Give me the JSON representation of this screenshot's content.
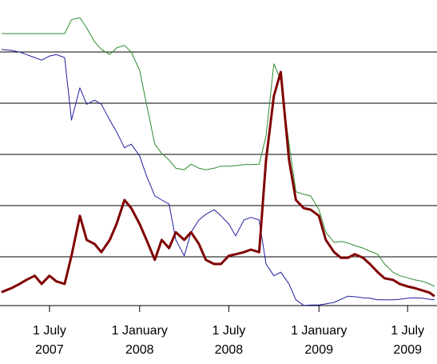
{
  "chart_data": {
    "type": "line",
    "x": [
      "2007-03-25",
      "2007-04-15",
      "2007-05-01",
      "2007-05-15",
      "2007-06-01",
      "2007-06-15",
      "2007-07-01",
      "2007-07-15",
      "2007-08-01",
      "2007-08-15",
      "2007-09-01",
      "2007-09-15",
      "2007-10-01",
      "2007-10-15",
      "2007-11-01",
      "2007-11-15",
      "2007-12-01",
      "2007-12-15",
      "2008-01-01",
      "2008-01-15",
      "2008-02-01",
      "2008-02-15",
      "2008-03-01",
      "2008-03-15",
      "2008-04-01",
      "2008-04-15",
      "2008-05-01",
      "2008-05-15",
      "2008-06-01",
      "2008-06-15",
      "2008-07-01",
      "2008-07-15",
      "2008-08-01",
      "2008-08-15",
      "2008-09-01",
      "2008-09-15",
      "2008-10-01",
      "2008-10-15",
      "2008-11-01",
      "2008-11-15",
      "2008-12-01",
      "2008-12-15",
      "2009-01-01",
      "2009-01-15",
      "2009-02-01",
      "2009-02-15",
      "2009-03-01",
      "2009-03-15",
      "2009-04-01",
      "2009-04-15",
      "2009-05-01",
      "2009-05-15",
      "2009-06-01",
      "2009-06-15",
      "2009-07-01",
      "2009-07-15",
      "2009-08-01",
      "2009-08-15",
      "2009-08-25"
    ],
    "series": [
      {
        "color": "#2e8b2e",
        "width": 1,
        "values": [
          5.36,
          5.36,
          5.36,
          5.36,
          5.36,
          5.36,
          5.36,
          5.36,
          5.36,
          5.63,
          5.67,
          5.47,
          5.2,
          5.05,
          4.95,
          5.08,
          5.13,
          5.0,
          4.64,
          3.98,
          3.2,
          3.02,
          2.89,
          2.73,
          2.7,
          2.81,
          2.73,
          2.7,
          2.73,
          2.77,
          2.77,
          2.78,
          2.8,
          2.8,
          2.81,
          3.36,
          4.77,
          4.45,
          3.2,
          2.27,
          2.22,
          2.19,
          1.92,
          1.48,
          1.28,
          1.3,
          1.27,
          1.22,
          1.17,
          1.11,
          1.05,
          0.86,
          0.7,
          0.63,
          0.59,
          0.55,
          0.52,
          0.47,
          0.42
        ]
      },
      {
        "color": "#1f1fa0",
        "width": 1,
        "values": [
          5.05,
          5.03,
          5.0,
          4.95,
          4.89,
          4.84,
          4.92,
          4.95,
          4.89,
          3.67,
          4.3,
          3.98,
          4.06,
          3.98,
          3.67,
          3.44,
          3.13,
          3.2,
          2.97,
          2.58,
          2.19,
          2.11,
          2.03,
          1.33,
          1.02,
          1.48,
          1.72,
          1.83,
          1.92,
          1.8,
          1.64,
          1.41,
          1.72,
          1.77,
          1.72,
          0.86,
          0.63,
          0.7,
          0.47,
          0.16,
          0.05,
          0.06,
          0.06,
          0.08,
          0.11,
          0.17,
          0.23,
          0.22,
          0.2,
          0.19,
          0.16,
          0.16,
          0.16,
          0.17,
          0.19,
          0.2,
          0.19,
          0.17,
          0.16
        ]
      },
      {
        "color": "#800000",
        "width": 3,
        "values": [
          0.31,
          0.39,
          0.47,
          0.55,
          0.63,
          0.47,
          0.63,
          0.52,
          0.47,
          1.02,
          1.8,
          1.33,
          1.25,
          1.09,
          1.33,
          1.64,
          2.11,
          1.95,
          1.64,
          1.33,
          0.94,
          1.33,
          1.17,
          1.48,
          1.33,
          1.48,
          1.25,
          0.94,
          0.86,
          0.86,
          1.02,
          1.05,
          1.09,
          1.14,
          1.09,
          2.89,
          4.14,
          4.61,
          2.89,
          2.11,
          1.95,
          1.92,
          1.8,
          1.33,
          1.09,
          0.98,
          0.98,
          1.05,
          0.98,
          0.86,
          0.7,
          0.58,
          0.55,
          0.47,
          0.42,
          0.39,
          0.34,
          0.3,
          0.23
        ]
      }
    ],
    "xlim": [
      "2007-03-22",
      "2009-08-30"
    ],
    "xticks": [
      {
        "value": "2007-07-01",
        "label": "1 July\n2007"
      },
      {
        "value": "2008-01-01",
        "label": "1 January\n2008"
      },
      {
        "value": "2008-07-01",
        "label": "1 July\n2008"
      },
      {
        "value": "2009-01-01",
        "label": "1 January\n2009"
      },
      {
        "value": "2009-07-01",
        "label": "1 July\n2009"
      }
    ],
    "ylim": [
      0,
      6
    ],
    "yticks": [
      1,
      2,
      3,
      4,
      5
    ],
    "grid": true
  }
}
